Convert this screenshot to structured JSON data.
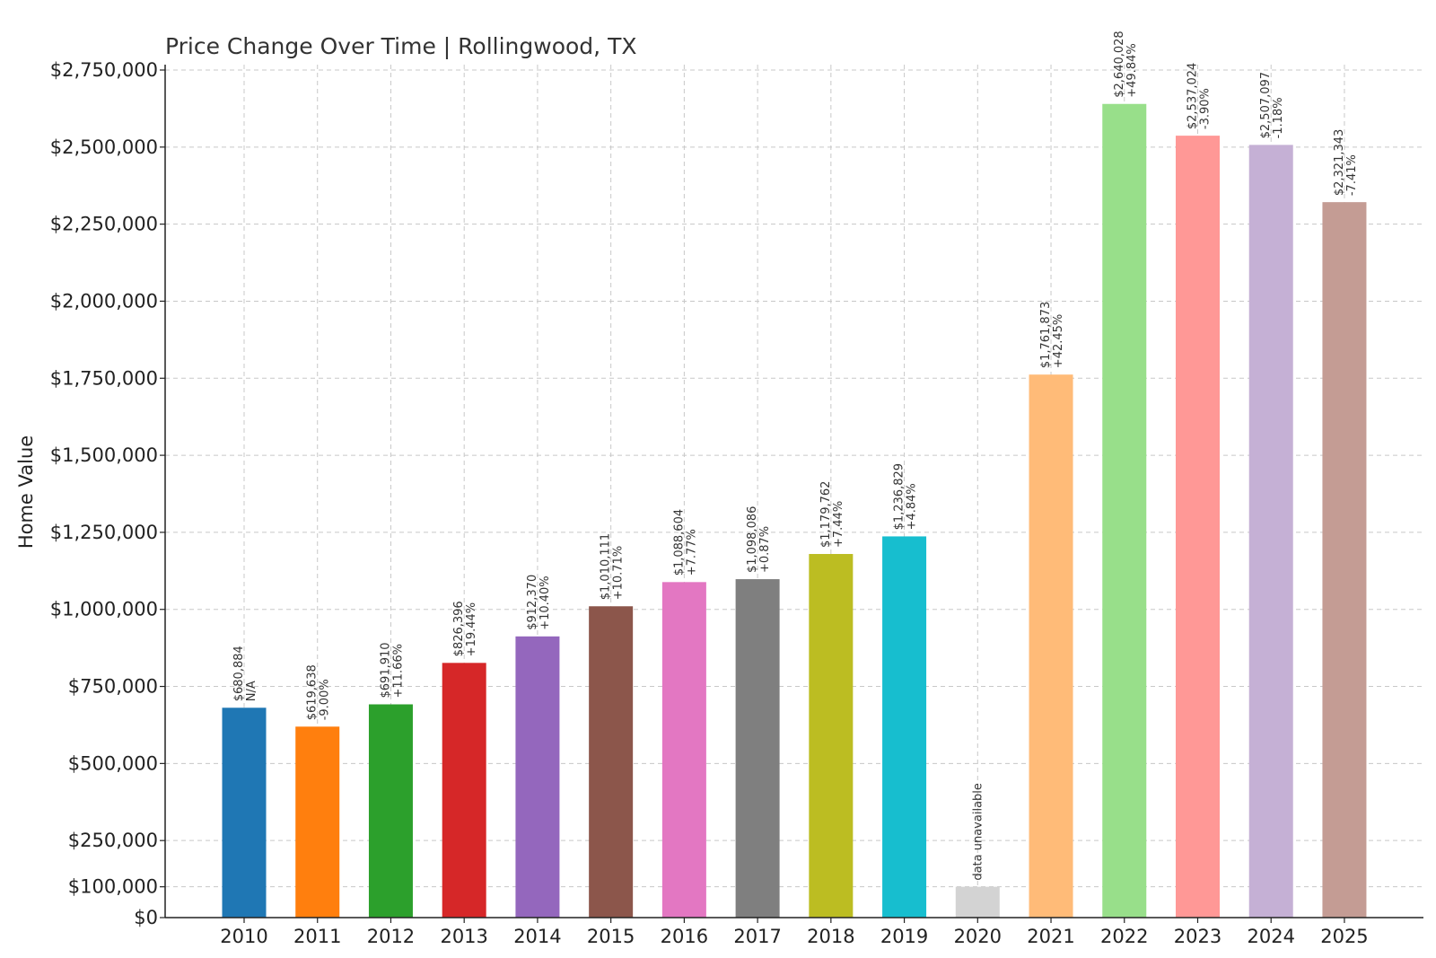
{
  "chart_data": {
    "type": "bar",
    "title": "Price Change Over Time | Rollingwood, TX",
    "xlabel": "",
    "ylabel": "Home Value",
    "ylim": [
      0,
      2750000
    ],
    "grid": true,
    "yticks": [
      {
        "value": 0,
        "label": "$0"
      },
      {
        "value": 100000,
        "label": "$100,000"
      },
      {
        "value": 250000,
        "label": "$250,000"
      },
      {
        "value": 500000,
        "label": "$500,000"
      },
      {
        "value": 750000,
        "label": "$750,000"
      },
      {
        "value": 1000000,
        "label": "$1,000,000"
      },
      {
        "value": 1250000,
        "label": "$1,250,000"
      },
      {
        "value": 1500000,
        "label": "$1,500,000"
      },
      {
        "value": 1750000,
        "label": "$1,750,000"
      },
      {
        "value": 2000000,
        "label": "$2,000,000"
      },
      {
        "value": 2250000,
        "label": "$2,250,000"
      },
      {
        "value": 2500000,
        "label": "$2,500,000"
      },
      {
        "value": 2750000,
        "label": "$2,750,000"
      }
    ],
    "bars": [
      {
        "year": "2010",
        "value": 680884,
        "value_label": "$680,884",
        "change_label": "N/A",
        "color": "#1f77b4"
      },
      {
        "year": "2011",
        "value": 619638,
        "value_label": "$619,638",
        "change_label": "-9.00%",
        "color": "#ff7f0e"
      },
      {
        "year": "2012",
        "value": 691910,
        "value_label": "$691,910",
        "change_label": "+11.66%",
        "color": "#2ca02c"
      },
      {
        "year": "2013",
        "value": 826396,
        "value_label": "$826,396",
        "change_label": "+19.44%",
        "color": "#d62728"
      },
      {
        "year": "2014",
        "value": 912370,
        "value_label": "$912,370",
        "change_label": "+10.40%",
        "color": "#9467bd"
      },
      {
        "year": "2015",
        "value": 1010111,
        "value_label": "$1,010,111",
        "change_label": "+10.71%",
        "color": "#8c564b"
      },
      {
        "year": "2016",
        "value": 1088604,
        "value_label": "$1,088,604",
        "change_label": "+7.77%",
        "color": "#e377c2"
      },
      {
        "year": "2017",
        "value": 1098086,
        "value_label": "$1,098,086",
        "change_label": "+0.87%",
        "color": "#7f7f7f"
      },
      {
        "year": "2018",
        "value": 1179762,
        "value_label": "$1,179,762",
        "change_label": "+7.44%",
        "color": "#bcbd22"
      },
      {
        "year": "2019",
        "value": 1236829,
        "value_label": "$1,236,829",
        "change_label": "+4.84%",
        "color": "#17becf"
      },
      {
        "year": "2020",
        "value": 100000,
        "value_label": "data unavailable",
        "change_label": "",
        "color": "#d3d3d3"
      },
      {
        "year": "2021",
        "value": 1761873,
        "value_label": "$1,761,873",
        "change_label": "+42.45%",
        "color": "#ffbb78"
      },
      {
        "year": "2022",
        "value": 2640028,
        "value_label": "$2,640,028",
        "change_label": "+49.84%",
        "color": "#98df8a"
      },
      {
        "year": "2023",
        "value": 2537024,
        "value_label": "$2,537,024",
        "change_label": "-3.90%",
        "color": "#ff9896"
      },
      {
        "year": "2024",
        "value": 2507097,
        "value_label": "$2,507,097",
        "change_label": "-1.18%",
        "color": "#c5b0d5"
      },
      {
        "year": "2025",
        "value": 2321343,
        "value_label": "$2,321,343",
        "change_label": "-7.41%",
        "color": "#c49c94"
      }
    ]
  }
}
